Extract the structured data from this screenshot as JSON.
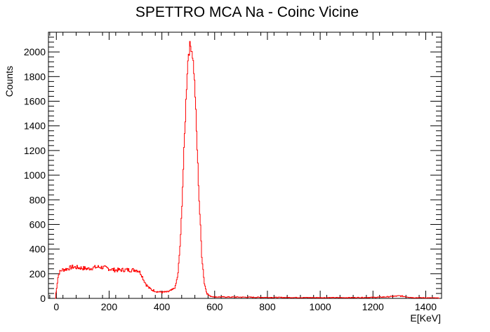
{
  "chart_data": {
    "type": "line",
    "title": "SPETTRO MCA Na - Coinc Vicine",
    "xlabel": "E[KeV]",
    "ylabel": "Counts",
    "xlim": [
      -30,
      1460
    ],
    "ylim": [
      0,
      2160
    ],
    "x_ticks": [
      0,
      200,
      400,
      600,
      800,
      1000,
      1200,
      1400
    ],
    "y_ticks": [
      0,
      200,
      400,
      600,
      800,
      1000,
      1200,
      1400,
      1600,
      1800,
      2000
    ],
    "grid": false,
    "legend": "none",
    "line_color": "#ff0000",
    "series": [
      {
        "x": [
          -5,
          0,
          5,
          10,
          20,
          40,
          60,
          80,
          100,
          120,
          140,
          160,
          180,
          200,
          220,
          240,
          260,
          280,
          300,
          310,
          320,
          330,
          340,
          350,
          360,
          380,
          400,
          420,
          440,
          450,
          460,
          470,
          480,
          490,
          495,
          500,
          505,
          510,
          515,
          520,
          525,
          530,
          540,
          550,
          560,
          570,
          580,
          600,
          700,
          800,
          900,
          1000,
          1100,
          1200,
          1250,
          1300,
          1320,
          1350,
          1400,
          1450
        ],
        "y": [
          0,
          90,
          170,
          210,
          230,
          240,
          255,
          250,
          245,
          240,
          250,
          255,
          250,
          240,
          230,
          230,
          232,
          230,
          232,
          225,
          200,
          150,
          110,
          85,
          70,
          55,
          50,
          52,
          70,
          95,
          200,
          500,
          1050,
          1600,
          1850,
          2000,
          2040,
          2050,
          1980,
          1850,
          1650,
          1350,
          800,
          350,
          120,
          40,
          20,
          12,
          10,
          8,
          7,
          6,
          6,
          8,
          12,
          20,
          15,
          6,
          5,
          3
        ]
      }
    ]
  }
}
